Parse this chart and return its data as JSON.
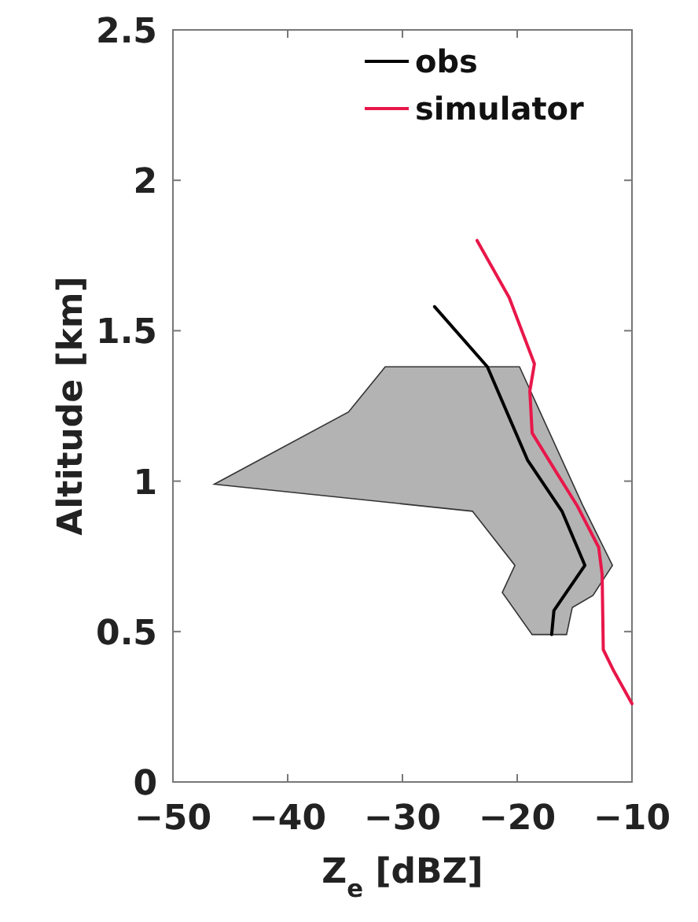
{
  "chart_data": {
    "type": "line",
    "xlabel": "Z$_{e}$ [dBZ]",
    "ylabel": "Altitude [km]",
    "xlim": [
      -50,
      -10
    ],
    "xticks": [
      -50,
      -40,
      -30,
      -20,
      -10
    ],
    "ylim": [
      0,
      2.5
    ],
    "yticks": [
      0,
      0.5,
      1,
      1.5,
      2,
      2.5
    ],
    "legend": "top right",
    "grid": false,
    "marker": "none",
    "line_style": "solid",
    "series": [
      {
        "type": "area",
        "color": "#b3b3b3",
        "x": [
          -46.4,
          -34.7,
          -31.5,
          -19.8,
          -14.3,
          -11.7,
          -13.4,
          -15.2,
          -15.7,
          -18.7,
          -21.3,
          -20.2,
          -23.9
        ],
        "values": [
          0.99,
          1.23,
          1.38,
          1.38,
          0.92,
          0.72,
          0.62,
          0.58,
          0.49,
          0.49,
          0.63,
          0.72,
          0.9
        ]
      },
      {
        "name": "obs",
        "color": "#000000",
        "x": [
          -27.2,
          -22.6,
          -19.1,
          -16.1,
          -14.1,
          -16.8,
          -17.0
        ],
        "values": [
          1.58,
          1.38,
          1.07,
          0.9,
          0.72,
          0.57,
          0.49
        ]
      },
      {
        "name": "simulator",
        "color": "#e8174a",
        "x": [
          -23.5,
          -20.7,
          -18.5,
          -18.9,
          -18.7,
          -16.6,
          -14.8,
          -12.9,
          -12.6,
          -12.5,
          -11.6,
          -10.0
        ],
        "values": [
          1.8,
          1.61,
          1.39,
          1.3,
          1.16,
          1.03,
          0.92,
          0.78,
          0.69,
          0.44,
          0.37,
          0.26
        ]
      }
    ]
  }
}
